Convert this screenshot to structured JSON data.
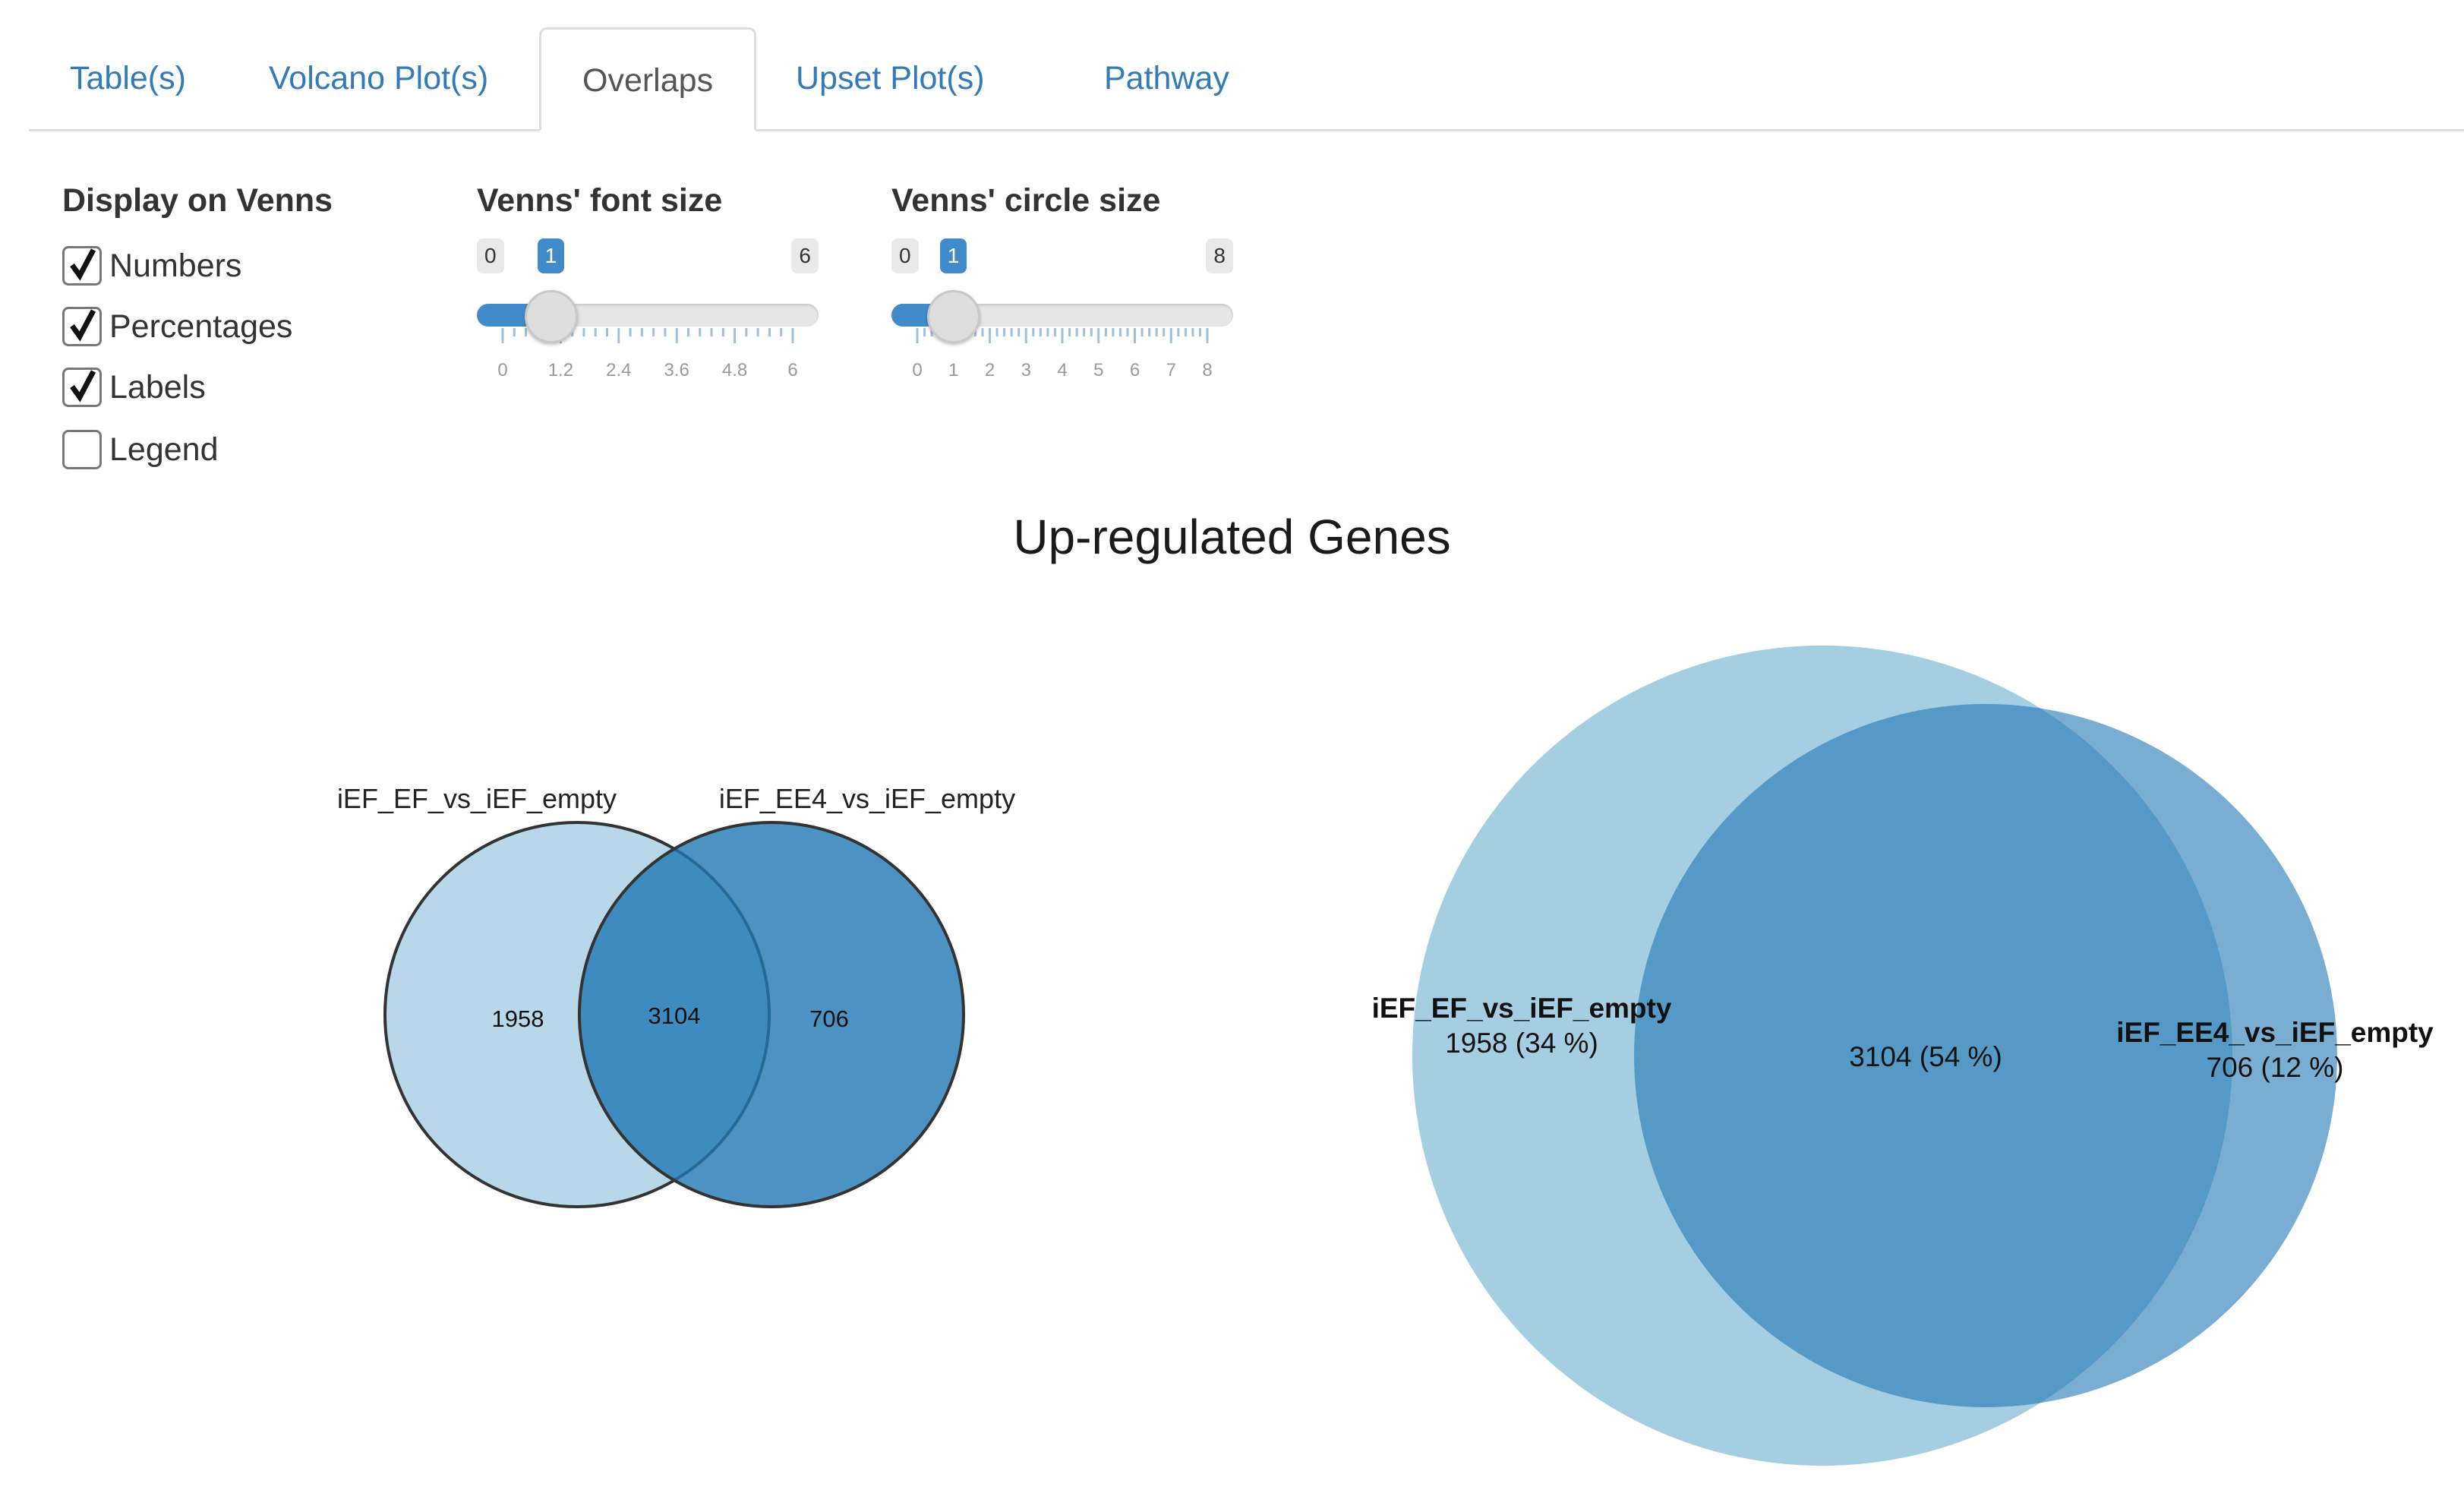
{
  "tabs": [
    {
      "label": "Table(s)",
      "active": false
    },
    {
      "label": "Volcano Plot(s)",
      "active": false
    },
    {
      "label": "Overlaps",
      "active": true
    },
    {
      "label": "Upset Plot(s)",
      "active": false
    },
    {
      "label": "Pathway",
      "active": false
    }
  ],
  "display": {
    "title": "Display on Venns",
    "options": [
      {
        "label": "Numbers",
        "checked": true
      },
      {
        "label": "Percentages",
        "checked": true
      },
      {
        "label": "Labels",
        "checked": true
      },
      {
        "label": "Legend",
        "checked": false
      }
    ]
  },
  "font_slider": {
    "title": "Venns' font size",
    "min": 0,
    "max": 6,
    "value": 1,
    "min_label": "0",
    "max_label": "6",
    "value_label": "1",
    "grid_labels": [
      "0",
      "1.2",
      "2.4",
      "3.6",
      "4.8",
      "6"
    ]
  },
  "circle_slider": {
    "title": "Venns' circle size",
    "min": 0,
    "max": 8,
    "value": 1,
    "min_label": "0",
    "max_label": "8",
    "value_label": "1",
    "grid_labels": [
      "0",
      "1",
      "2",
      "3",
      "4",
      "5",
      "6",
      "7",
      "8"
    ]
  },
  "chart_title": "Up-regulated Genes",
  "colors": {
    "accent": "#428bca",
    "light_blue": "#a6cee3",
    "dark_blue": "#1f78b4"
  },
  "chart_data": [
    {
      "type": "venn",
      "sets": [
        {
          "name": "iEF_EF_vs_iEF_empty",
          "only": 1958
        },
        {
          "name": "iEF_EE4_vs_iEF_empty",
          "only": 706
        }
      ],
      "intersection": 3104,
      "labels": {
        "left": "1958",
        "middle": "3104",
        "right": "706"
      }
    },
    {
      "type": "venn",
      "sets": [
        {
          "name": "iEF_EF_vs_iEF_empty",
          "only": 1958,
          "percent": 34
        },
        {
          "name": "iEF_EE4_vs_iEF_empty",
          "only": 706,
          "percent": 12
        }
      ],
      "intersection": 3104,
      "intersection_percent": 54,
      "labels": {
        "left": "1958 (34 %)",
        "middle": "3104 (54 %)",
        "right": "706 (12 %)"
      }
    }
  ]
}
